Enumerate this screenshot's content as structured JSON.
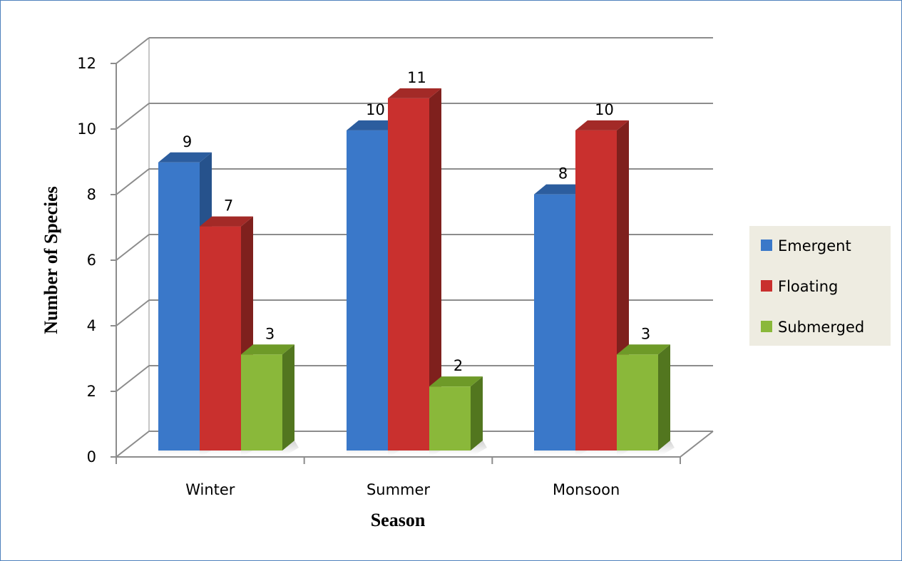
{
  "chart_data": {
    "type": "bar",
    "categories": [
      "Winter",
      "Summer",
      "Monsoon"
    ],
    "series": [
      {
        "name": "Emergent",
        "values": [
          9,
          10,
          8
        ],
        "color": "#3a78c9",
        "side": "#26528c",
        "top": "#2c5d9e"
      },
      {
        "name": "Floating",
        "values": [
          7,
          11,
          10
        ],
        "color": "#c9302e",
        "side": "#7f201d",
        "top": "#a32a27"
      },
      {
        "name": "Submerged",
        "values": [
          3,
          2,
          3
        ],
        "color": "#8ab83a",
        "side": "#52761f",
        "top": "#6e9a28"
      }
    ],
    "xlabel": "Season",
    "ylabel": "Number of Species",
    "ylim": [
      0,
      12
    ],
    "yticks": [
      0,
      2,
      4,
      6,
      8,
      10,
      12
    ],
    "grid": true,
    "legend": "right"
  }
}
